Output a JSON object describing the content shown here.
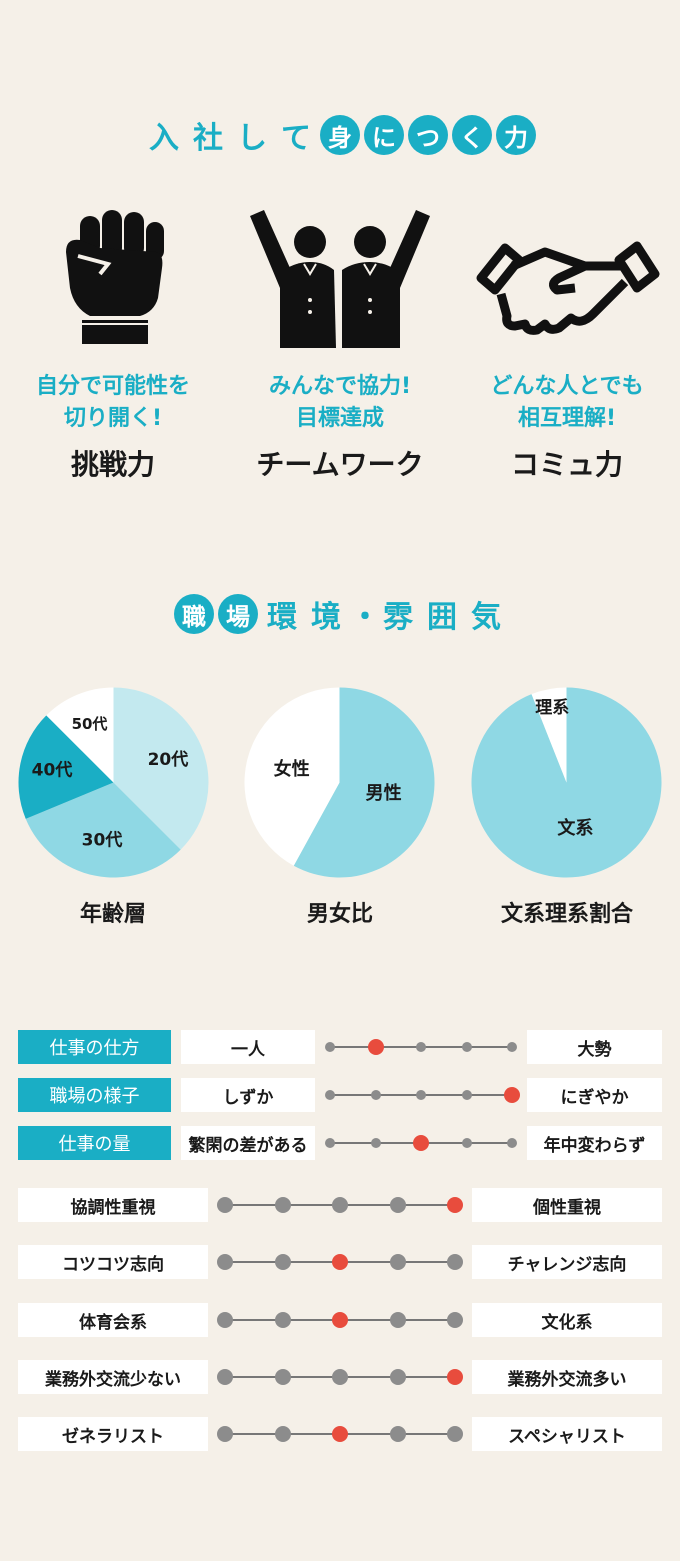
{
  "section1": {
    "title_plain": [
      "入",
      "社",
      "し",
      "て"
    ],
    "title_circled": [
      "身",
      "に",
      "つ",
      "く",
      "力"
    ],
    "skills": [
      {
        "icon": "fist-icon",
        "sub": "自分で可能性を\n切り開く!",
        "main": "挑戦力"
      },
      {
        "icon": "teamwork-icon",
        "sub": "みんなで協力!\n目標達成",
        "main": "チームワーク"
      },
      {
        "icon": "handshake-icon",
        "sub": "どんな人とでも\n相互理解!",
        "main": "コミュ力"
      }
    ]
  },
  "section2": {
    "title_circled": [
      "職",
      "場"
    ],
    "title_plain": [
      "環",
      "境",
      "・",
      "雰",
      "囲",
      "気"
    ]
  },
  "chart_data": [
    {
      "type": "pie",
      "title": "年齢層",
      "slices": [
        {
          "label": "20代",
          "value": 37.5,
          "color": "#c3e9ef"
        },
        {
          "label": "30代",
          "value": 31.25,
          "color": "#8fd8e4"
        },
        {
          "label": "40代",
          "value": 18.75,
          "color": "#1aaec5"
        },
        {
          "label": "50代",
          "value": 12.5,
          "color": "#ffffff"
        }
      ]
    },
    {
      "type": "pie",
      "title": "男女比",
      "slices": [
        {
          "label": "男性",
          "value": 58,
          "color": "#8fd8e4"
        },
        {
          "label": "女性",
          "value": 42,
          "color": "#ffffff"
        }
      ]
    },
    {
      "type": "pie",
      "title": "文系理系割合",
      "slices": [
        {
          "label": "文系",
          "value": 94,
          "color": "#8fd8e4"
        },
        {
          "label": "理系",
          "value": 6,
          "color": "#ffffff"
        }
      ]
    }
  ],
  "scales_tagged": [
    {
      "tag": "仕事の仕方",
      "left": "一人",
      "right": "大勢",
      "level": 2,
      "steps": 5
    },
    {
      "tag": "職場の様子",
      "left": "しずか",
      "right": "にぎやか",
      "level": 5,
      "steps": 5
    },
    {
      "tag": "仕事の量",
      "left": "繁閑の差がある",
      "right": "年中変わらず",
      "level": 3,
      "steps": 5
    }
  ],
  "scales": [
    {
      "left": "協調性重視",
      "right": "個性重視",
      "level": 5,
      "steps": 5
    },
    {
      "left": "コツコツ志向",
      "right": "チャレンジ志向",
      "level": 3,
      "steps": 5
    },
    {
      "left": "体育会系",
      "right": "文化系",
      "level": 3,
      "steps": 5
    },
    {
      "left": "業務外交流少ない",
      "right": "業務外交流多い",
      "level": 5,
      "steps": 5
    },
    {
      "left": "ゼネラリスト",
      "right": "スペシャリスト",
      "level": 3,
      "steps": 5
    }
  ],
  "colors": {
    "accent": "#1aaec5",
    "selected": "#e84c3d",
    "dot": "#8c8c8c",
    "background": "#f5f0e8"
  }
}
